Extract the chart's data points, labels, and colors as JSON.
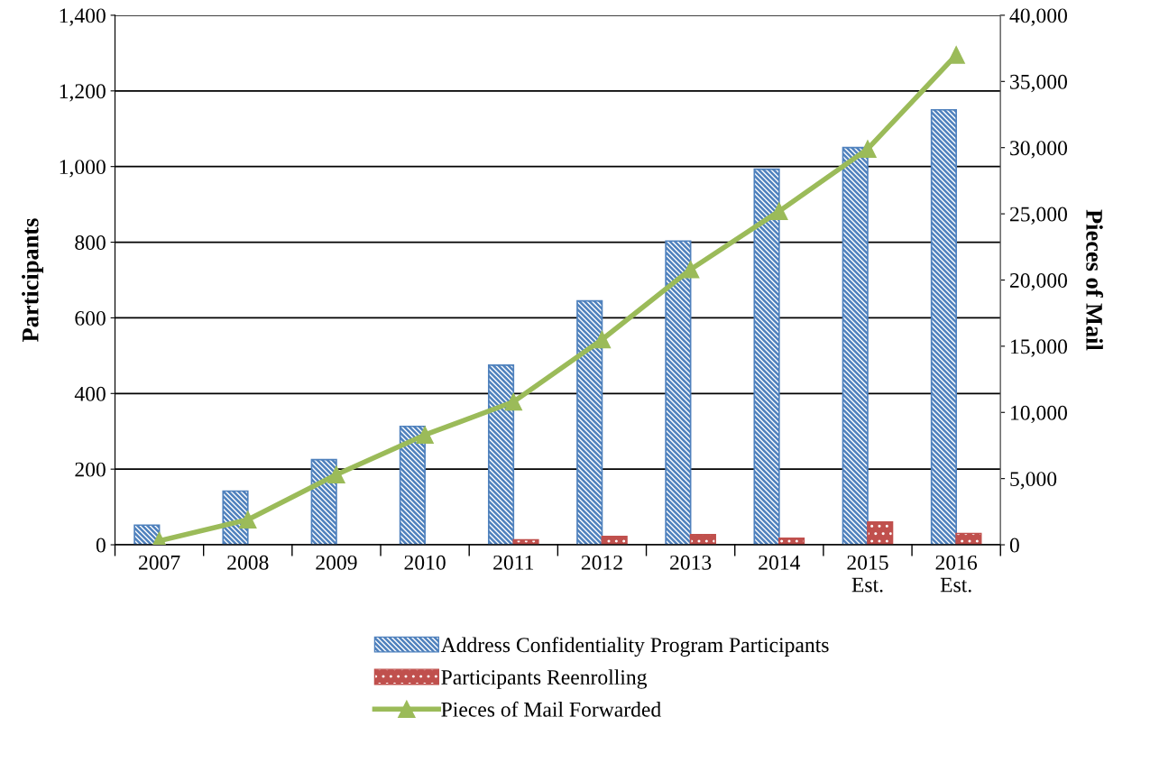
{
  "chart_data": {
    "type": "bar",
    "ylabel": "Participants",
    "y2label": "Pieces of Mail",
    "categories": [
      "2007",
      "2008",
      "2009",
      "2010",
      "2011",
      "2012",
      "2013",
      "2014",
      "2015\nEst.",
      "2016\nEst."
    ],
    "series": [
      {
        "name": "Address Confidentiality Program Participants",
        "color": "#4f81bd",
        "values": [
          52,
          142,
          225,
          313,
          475,
          645,
          803,
          993,
          1050,
          1150
        ]
      },
      {
        "name": "Participants Reenrolling",
        "color": "#c0504d",
        "values": [
          null,
          null,
          null,
          null,
          13,
          22,
          27,
          17,
          60,
          30
        ]
      },
      {
        "name": "Pieces of Mail Forwarded",
        "type": "line",
        "axis": "y2",
        "color": "#9bbb59",
        "marker": "triangle",
        "values": [
          300,
          1900,
          5300,
          8300,
          10800,
          15500,
          20800,
          25200,
          29900,
          37000
        ]
      }
    ],
    "ylim": [
      0,
      1400
    ],
    "yticks": [
      {
        "value": 0,
        "label": "0"
      },
      {
        "value": 200,
        "label": "200"
      },
      {
        "value": 400,
        "label": "400"
      },
      {
        "value": 600,
        "label": "600"
      },
      {
        "value": 800,
        "label": "800"
      },
      {
        "value": 1000,
        "label": "1,000"
      },
      {
        "value": 1200,
        "label": "1,200"
      },
      {
        "value": 1400,
        "label": "1,400"
      }
    ],
    "y2lim": [
      0,
      40000
    ],
    "y2ticks": [
      {
        "value": 0,
        "label": "0"
      },
      {
        "value": 5000,
        "label": "5,000"
      },
      {
        "value": 10000,
        "label": "10,000"
      },
      {
        "value": 15000,
        "label": "15,000"
      },
      {
        "value": 20000,
        "label": "20,000"
      },
      {
        "value": 25000,
        "label": "25,000"
      },
      {
        "value": 30000,
        "label": "30,000"
      },
      {
        "value": 35000,
        "label": "35,000"
      },
      {
        "value": 40000,
        "label": "40,000"
      }
    ],
    "grid": "y",
    "legend": "bottom"
  }
}
